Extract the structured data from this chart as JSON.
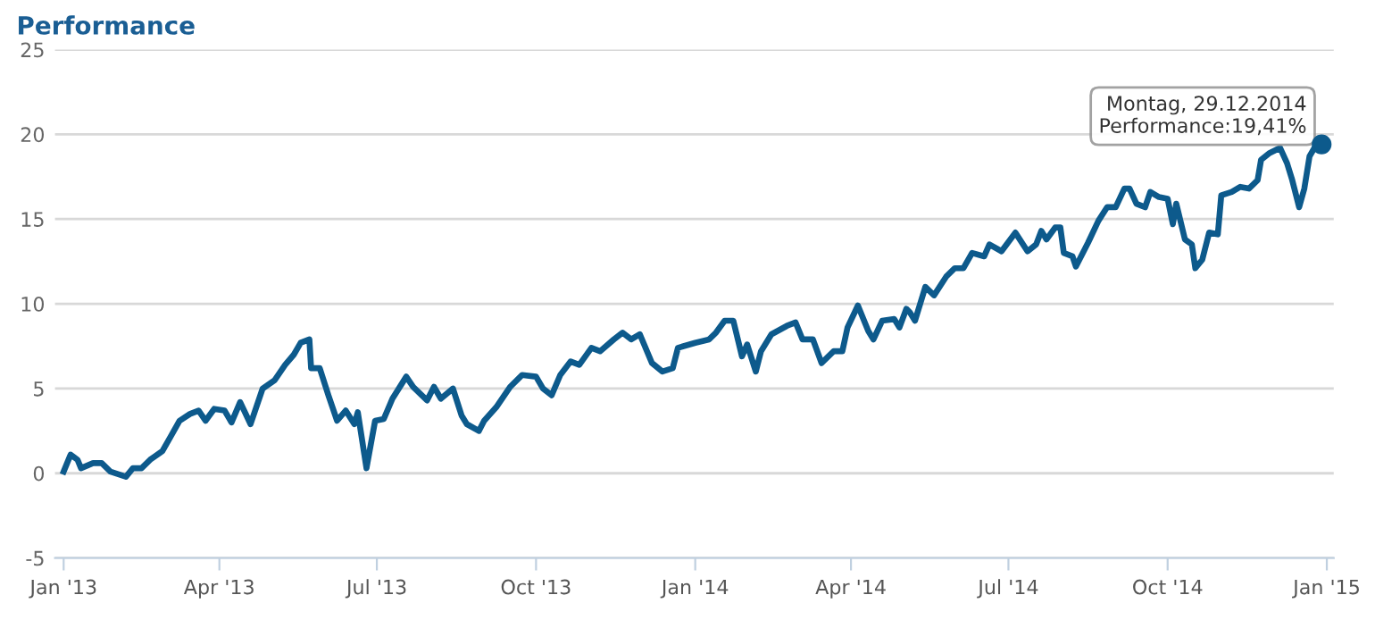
{
  "chart_data": {
    "type": "line",
    "title": "Performance",
    "x": [
      "2013-01-01",
      "2013-01-05",
      "2013-01-09",
      "2013-01-11",
      "2013-01-18",
      "2013-01-23",
      "2013-01-28",
      "2013-02-06",
      "2013-02-10",
      "2013-02-15",
      "2013-02-20",
      "2013-02-27",
      "2013-03-04",
      "2013-03-09",
      "2013-03-15",
      "2013-03-20",
      "2013-03-24",
      "2013-03-29",
      "2013-04-04",
      "2013-04-08",
      "2013-04-13",
      "2013-04-19",
      "2013-04-26",
      "2013-05-03",
      "2013-05-09",
      "2013-05-14",
      "2013-05-18",
      "2013-05-23",
      "2013-05-24",
      "2013-05-29",
      "2013-06-03",
      "2013-06-08",
      "2013-06-13",
      "2013-06-18",
      "2013-06-20",
      "2013-06-25",
      "2013-06-30",
      "2013-07-05",
      "2013-07-10",
      "2013-07-18",
      "2013-07-22",
      "2013-07-30",
      "2013-08-03",
      "2013-08-07",
      "2013-08-14",
      "2013-08-19",
      "2013-08-22",
      "2013-08-29",
      "2013-09-01",
      "2013-09-08",
      "2013-09-16",
      "2013-09-23",
      "2013-10-01",
      "2013-10-05",
      "2013-10-10",
      "2013-10-15",
      "2013-10-21",
      "2013-10-26",
      "2013-11-02",
      "2013-11-07",
      "2013-11-15",
      "2013-11-20",
      "2013-11-25",
      "2013-11-30",
      "2013-12-07",
      "2013-12-13",
      "2013-12-19",
      "2013-12-22",
      "2014-01-01",
      "2014-01-09",
      "2014-01-13",
      "2014-01-18",
      "2014-01-23",
      "2014-01-28",
      "2014-01-31",
      "2014-02-05",
      "2014-02-08",
      "2014-02-14",
      "2014-02-23",
      "2014-02-28",
      "2014-03-04",
      "2014-03-10",
      "2014-03-15",
      "2014-03-22",
      "2014-03-27",
      "2014-03-30",
      "2014-04-05",
      "2014-04-11",
      "2014-04-14",
      "2014-04-19",
      "2014-04-26",
      "2014-04-29",
      "2014-05-03",
      "2014-05-05",
      "2014-05-08",
      "2014-05-14",
      "2014-05-19",
      "2014-05-26",
      "2014-05-31",
      "2014-06-05",
      "2014-06-10",
      "2014-06-17",
      "2014-06-20",
      "2014-06-27",
      "2014-07-05",
      "2014-07-12",
      "2014-07-17",
      "2014-07-20",
      "2014-07-23",
      "2014-07-28",
      "2014-07-31",
      "2014-08-02",
      "2014-08-07",
      "2014-08-09",
      "2014-08-16",
      "2014-08-22",
      "2014-08-27",
      "2014-09-01",
      "2014-09-06",
      "2014-09-09",
      "2014-09-13",
      "2014-09-18",
      "2014-09-21",
      "2014-09-26",
      "2014-10-01",
      "2014-10-04",
      "2014-10-06",
      "2014-10-11",
      "2014-10-15",
      "2014-10-17",
      "2014-10-21",
      "2014-10-25",
      "2014-10-30",
      "2014-11-01",
      "2014-11-07",
      "2014-11-12",
      "2014-11-17",
      "2014-11-22",
      "2014-11-24",
      "2014-11-29",
      "2014-12-05",
      "2014-12-09",
      "2014-12-12",
      "2014-12-16",
      "2014-12-19",
      "2014-12-22",
      "2014-12-26",
      "2014-12-29"
    ],
    "series": [
      {
        "color": "#0d5a8c",
        "values": [
          0.1,
          1.1,
          0.8,
          0.3,
          0.6,
          0.6,
          0.1,
          -0.2,
          0.3,
          0.3,
          0.8,
          1.3,
          2.2,
          3.1,
          3.5,
          3.7,
          3.1,
          3.8,
          3.7,
          3.0,
          4.2,
          2.9,
          5.0,
          5.5,
          6.4,
          7.0,
          7.7,
          7.9,
          6.2,
          6.2,
          4.6,
          3.1,
          3.7,
          2.9,
          3.6,
          0.3,
          3.1,
          3.2,
          4.4,
          5.7,
          5.1,
          4.3,
          5.1,
          4.4,
          5.0,
          3.4,
          2.9,
          2.5,
          3.1,
          3.9,
          5.1,
          5.8,
          5.7,
          5.0,
          4.6,
          5.8,
          6.6,
          6.4,
          7.4,
          7.2,
          7.9,
          8.3,
          7.9,
          8.2,
          6.5,
          6.0,
          6.2,
          7.4,
          7.7,
          7.9,
          8.3,
          9.0,
          9.0,
          6.9,
          7.6,
          6.0,
          7.2,
          8.2,
          8.7,
          8.9,
          7.9,
          7.9,
          6.5,
          7.2,
          7.2,
          8.6,
          9.9,
          8.4,
          7.9,
          9.0,
          9.1,
          8.6,
          9.7,
          9.5,
          9.0,
          11.0,
          10.5,
          11.6,
          12.1,
          12.1,
          13.0,
          12.8,
          13.5,
          13.1,
          14.2,
          13.1,
          13.5,
          14.3,
          13.8,
          14.5,
          14.5,
          13.0,
          12.8,
          12.2,
          13.6,
          14.9,
          15.7,
          15.7,
          16.8,
          16.8,
          15.9,
          15.7,
          16.6,
          16.3,
          16.2,
          14.7,
          15.9,
          13.8,
          13.5,
          12.1,
          12.6,
          14.2,
          14.1,
          16.4,
          16.6,
          16.9,
          16.8,
          17.3,
          18.5,
          18.9,
          19.2,
          18.3,
          17.3,
          15.7,
          16.8,
          18.7,
          19.4,
          19.41
        ]
      }
    ],
    "xlim": [
      "2012-12-27",
      "2015-01-05"
    ],
    "xticks": [
      {
        "value": "2013-01-01",
        "label": "Jan '13"
      },
      {
        "value": "2013-04-01",
        "label": "Apr '13"
      },
      {
        "value": "2013-07-01",
        "label": "Jul '13"
      },
      {
        "value": "2013-10-01",
        "label": "Oct '13"
      },
      {
        "value": "2014-01-01",
        "label": "Jan '14"
      },
      {
        "value": "2014-04-01",
        "label": "Apr '14"
      },
      {
        "value": "2014-07-01",
        "label": "Jul '14"
      },
      {
        "value": "2014-10-01",
        "label": "Oct '14"
      },
      {
        "value": "2015-01-01",
        "label": "Jan '15"
      }
    ],
    "ylim": [
      -5,
      25
    ],
    "yticks": [
      {
        "value": -5,
        "label": "-5"
      },
      0,
      5,
      10,
      15,
      20,
      25
    ],
    "grid": "y",
    "legend": false,
    "marker": "none",
    "line_style": "solid",
    "annotations": [
      {
        "text": "Montag, 29.12.2014\nPerformance:19,41%",
        "x": "2014-12-29",
        "y": 19.41
      }
    ]
  }
}
